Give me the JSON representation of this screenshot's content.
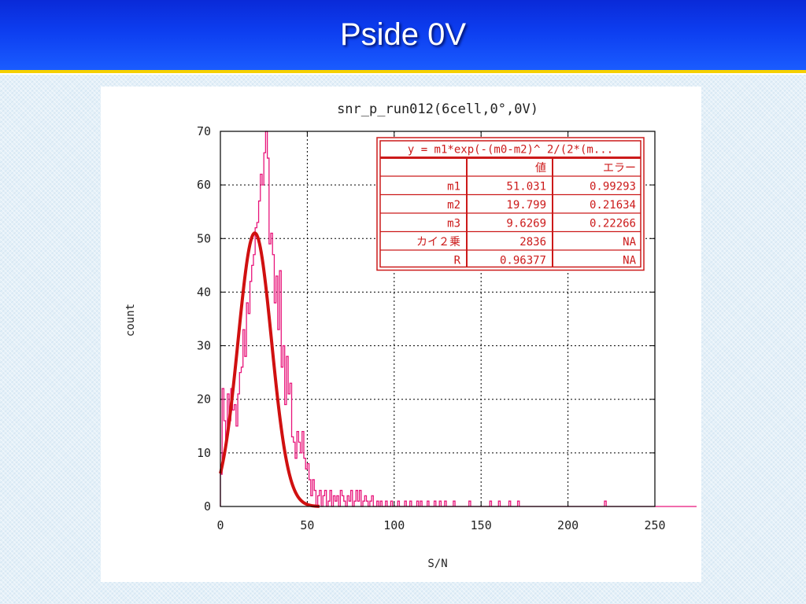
{
  "slide": {
    "title": "Pside 0V"
  },
  "chart_data": {
    "type": "histogram",
    "title": "snr_p_run012(6cell,0°,0V)",
    "xlabel": "S/N",
    "ylabel": "count",
    "xlim": [
      0,
      250
    ],
    "ylim": [
      0,
      70
    ],
    "xticks": [
      0,
      50,
      100,
      150,
      200,
      250
    ],
    "yticks": [
      0,
      10,
      20,
      30,
      40,
      50,
      60,
      70
    ],
    "grid": true,
    "colors": {
      "histogram": "#e8157a",
      "fit": "#d01010",
      "table": "#cc1a1a"
    },
    "histogram": {
      "bin_width": 1,
      "counts": [
        6,
        22,
        16,
        12,
        21,
        16,
        22,
        18,
        19,
        15,
        21,
        25,
        26,
        33,
        28,
        38,
        36,
        42,
        45,
        47,
        52,
        53,
        57,
        62,
        60,
        66,
        70,
        65,
        49,
        51,
        47,
        38,
        43,
        33,
        44,
        26,
        30,
        19,
        28,
        21,
        23,
        13,
        12,
        9,
        14,
        12,
        10,
        14,
        9,
        7,
        8,
        5,
        2,
        5,
        3,
        0,
        2,
        3,
        0,
        2,
        3,
        0,
        1,
        3,
        0,
        2,
        1,
        2,
        0,
        3,
        2,
        1,
        0,
        2,
        1,
        3,
        0,
        1,
        3,
        1,
        3,
        0,
        1,
        2,
        1,
        0,
        1,
        2,
        0,
        0,
        1,
        0,
        1,
        0,
        0,
        1,
        0,
        0,
        1,
        0,
        0,
        0,
        1,
        0,
        0,
        0,
        1,
        0,
        0,
        1,
        0,
        0,
        0,
        1,
        0,
        1,
        0,
        0,
        0,
        1,
        0,
        0,
        0,
        1,
        0,
        0,
        1,
        0,
        0,
        1,
        0,
        0,
        0,
        0,
        1,
        0,
        0,
        0,
        0,
        0,
        0,
        0,
        0,
        1,
        0,
        0,
        0,
        0,
        0,
        0,
        0,
        0,
        0,
        0,
        0,
        1,
        0,
        0,
        0,
        0,
        1,
        0,
        0,
        0,
        0,
        0,
        1,
        0,
        0,
        0,
        0,
        1,
        0,
        0,
        0,
        0,
        0,
        0,
        0,
        0,
        0,
        0,
        0,
        0,
        0,
        0,
        0,
        0,
        0,
        0,
        0,
        0,
        0,
        0,
        0,
        0,
        0,
        0,
        0,
        0,
        0,
        0,
        0,
        0,
        0,
        0,
        0,
        0,
        0,
        0,
        0,
        0,
        0,
        0,
        0,
        0,
        0,
        0,
        0,
        0,
        0,
        1,
        0,
        0,
        0,
        0,
        0,
        0,
        0,
        0,
        0,
        0,
        0,
        0,
        0,
        0,
        0,
        0,
        0,
        0,
        0,
        0,
        0,
        0,
        0,
        0,
        0,
        0,
        0,
        0,
        0,
        0,
        0,
        0,
        0,
        0,
        0,
        0,
        0,
        0,
        0,
        0,
        0,
        0,
        0,
        0,
        0,
        0,
        0,
        0,
        0,
        0,
        0,
        0,
        0
      ]
    },
    "fit": {
      "formula": "y = m1*exp(-(m0-m2)^2/(2*(m...",
      "m1": 51.031,
      "m2": 19.799,
      "m3": 9.6269,
      "x_range": [
        0,
        57
      ]
    },
    "fit_table": {
      "formula": "y = m1*exp(-(m0-m2)^ 2/(2*(m...",
      "header": [
        "",
        "値",
        "エラー"
      ],
      "rows": [
        [
          "m1",
          "51.031",
          "0.99293"
        ],
        [
          "m2",
          "19.799",
          "0.21634"
        ],
        [
          "m3",
          "9.6269",
          "0.22266"
        ],
        [
          "カイ２乗",
          "2836",
          "NA"
        ],
        [
          "R",
          "0.96377",
          "NA"
        ]
      ]
    }
  }
}
